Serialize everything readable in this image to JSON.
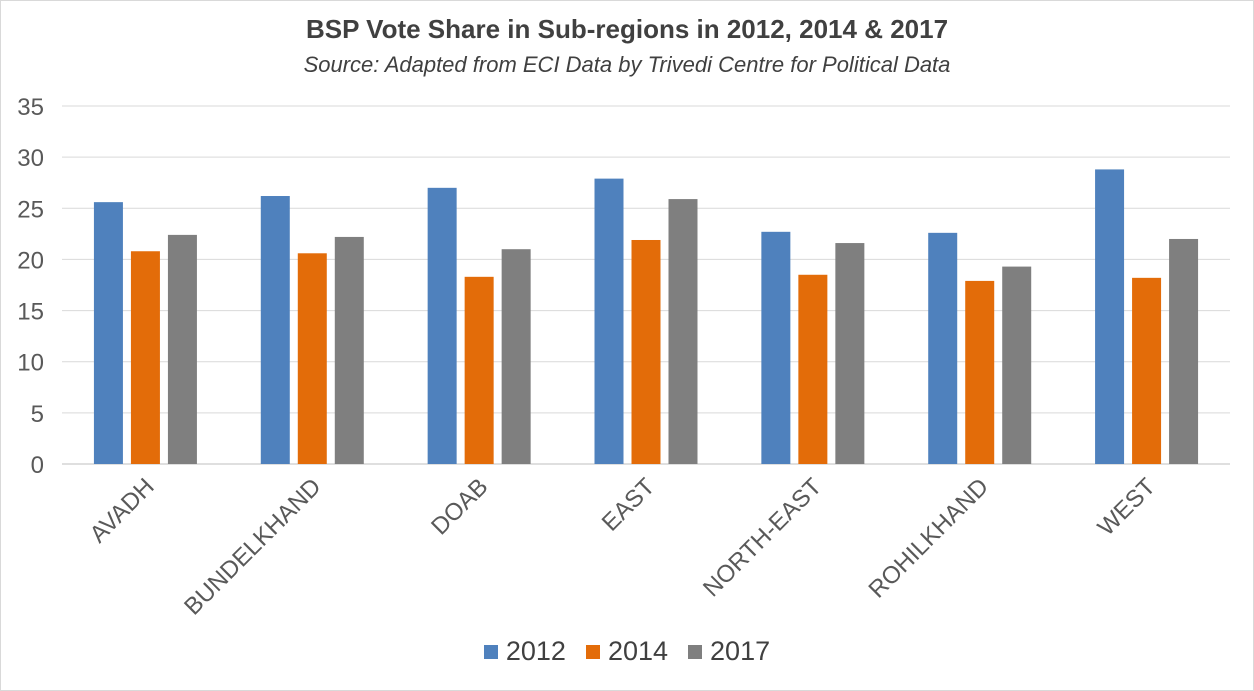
{
  "chart_data": {
    "type": "bar",
    "title": "BSP Vote Share in Sub-regions in 2012, 2014 & 2017",
    "subtitle": "Source: Adapted from ECI Data by Trivedi Centre for Political Data",
    "categories": [
      "AVADH",
      "BUNDELKHAND",
      "DOAB",
      "EAST",
      "NORTH-EAST",
      "ROHILKHAND",
      "WEST"
    ],
    "series": [
      {
        "name": "2012",
        "color": "#4f81bd",
        "values": [
          25.6,
          26.2,
          27.0,
          27.9,
          22.7,
          22.6,
          28.8
        ]
      },
      {
        "name": "2014",
        "color": "#e36c09",
        "values": [
          20.8,
          20.6,
          18.3,
          21.9,
          18.5,
          17.9,
          18.2
        ]
      },
      {
        "name": "2017",
        "color": "#7f7f7f",
        "values": [
          22.4,
          22.2,
          21.0,
          25.9,
          21.6,
          19.3,
          22.0
        ]
      }
    ],
    "ylim": [
      0,
      35
    ],
    "yticks": [
      0,
      5,
      10,
      15,
      20,
      25,
      30,
      35
    ],
    "grid": true,
    "legend_position": "bottom"
  }
}
